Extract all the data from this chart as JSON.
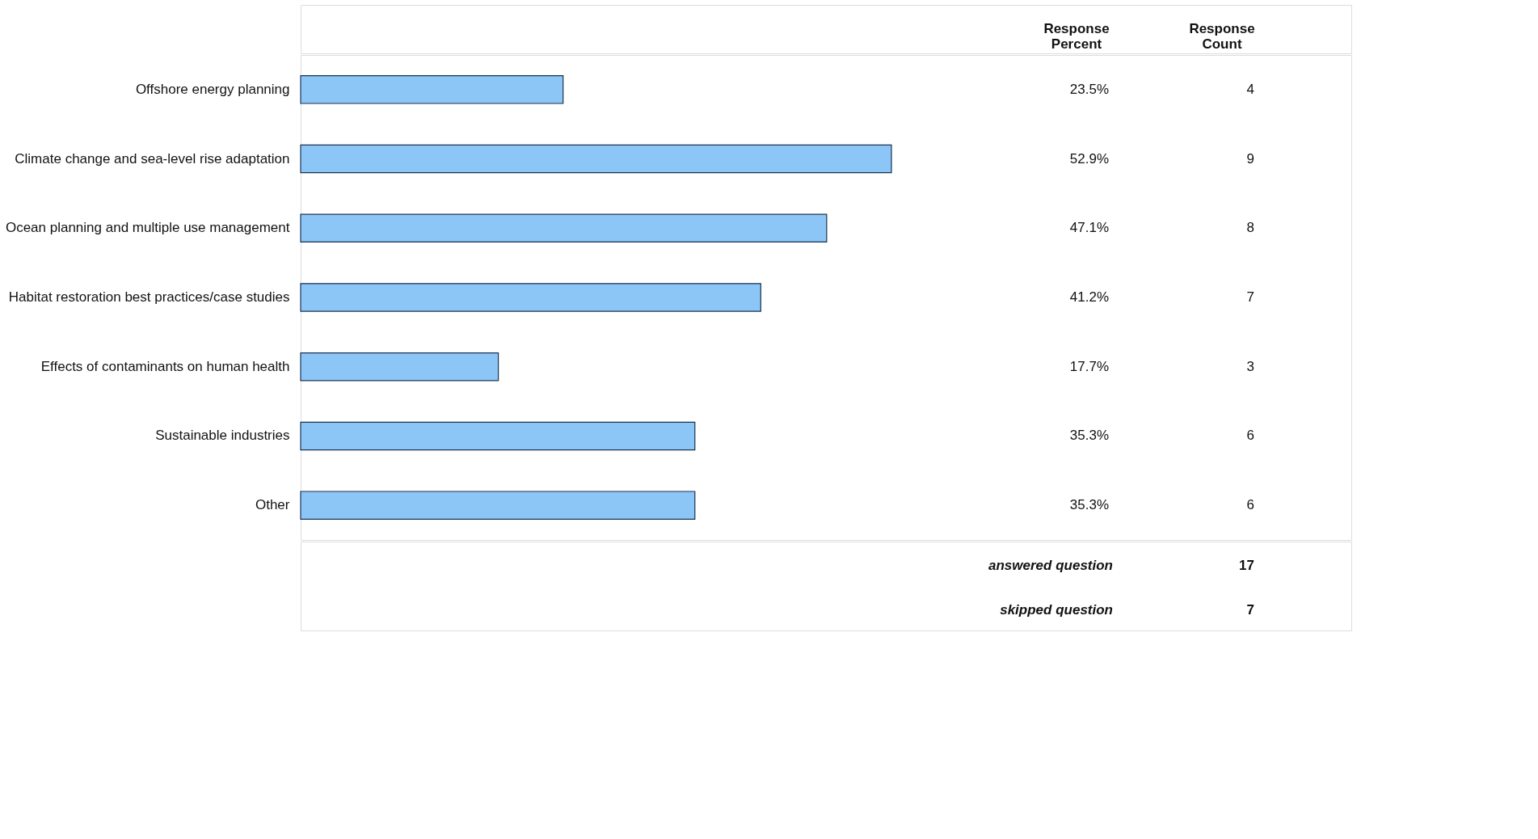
{
  "chart_data": {
    "type": "bar",
    "orientation": "horizontal",
    "categories": [
      "Offshore energy planning",
      "Climate change and sea-level rise adaptation",
      "Ocean planning and multiple use management",
      "Habitat restoration best practices/case studies",
      "Effects of contaminants on human health",
      "Sustainable industries",
      "Other"
    ],
    "values": [
      23.5,
      52.9,
      47.1,
      41.2,
      17.7,
      35.3,
      35.3
    ],
    "value_labels": [
      "23.5%",
      "52.9%",
      "47.1%",
      "41.2%",
      "17.7%",
      "35.3%",
      "35.3%"
    ],
    "color": "#8cc6f7",
    "tick_labels": "y",
    "grid": false,
    "annotations": [
      "Response Percent",
      "Response Count",
      "4",
      "9",
      "8",
      "7",
      "3",
      "6",
      "6",
      "answered question",
      "17",
      "skipped question",
      "7"
    ]
  }
}
